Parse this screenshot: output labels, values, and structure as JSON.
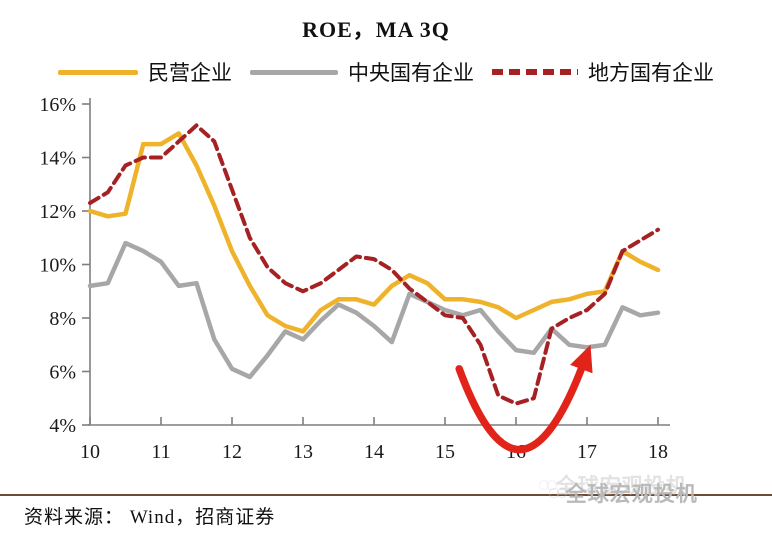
{
  "chart": {
    "title": "ROE，MA 3Q"
  },
  "chart_data": {
    "type": "line",
    "title": "ROE，MA 3Q",
    "xlabel": "",
    "ylabel": "",
    "xlim": [
      10,
      18
    ],
    "ylim": [
      4,
      16
    ],
    "grid": false,
    "legend_position": "top",
    "y_tick_labels": [
      "16%",
      "14%",
      "12%",
      "10%",
      "8%",
      "6%",
      "4%"
    ],
    "y_tick_values": [
      16,
      14,
      12,
      10,
      8,
      6,
      4
    ],
    "x_tick_labels": [
      "10",
      "11",
      "12",
      "13",
      "14",
      "15",
      "16",
      "17",
      "18"
    ],
    "x_tick_values": [
      10,
      11,
      12,
      13,
      14,
      15,
      16,
      17,
      18
    ],
    "x": [
      10,
      10.25,
      10.5,
      10.75,
      11,
      11.25,
      11.5,
      11.75,
      12,
      12.25,
      12.5,
      12.75,
      13,
      13.25,
      13.5,
      13.75,
      14,
      14.25,
      14.5,
      14.75,
      15,
      15.25,
      15.5,
      15.75,
      16,
      16.25,
      16.5,
      16.75,
      17,
      17.25,
      17.5,
      17.75,
      18
    ],
    "series": [
      {
        "name": "民营企业",
        "color": "#EFB32B",
        "style": "solid",
        "values": [
          12.0,
          11.8,
          11.9,
          14.5,
          14.5,
          14.9,
          13.7,
          12.2,
          10.5,
          9.2,
          8.1,
          7.7,
          7.5,
          8.3,
          8.7,
          8.7,
          8.5,
          9.2,
          9.6,
          9.3,
          8.7,
          8.7,
          8.6,
          8.4,
          8.0,
          8.3,
          8.6,
          8.7,
          8.9,
          9.0,
          10.5,
          10.1,
          9.8
        ]
      },
      {
        "name": "中央国有企业",
        "color": "#A7A7A7",
        "style": "solid",
        "values": [
          9.2,
          9.3,
          10.8,
          10.5,
          10.1,
          9.2,
          9.3,
          7.2,
          6.1,
          5.8,
          6.6,
          7.5,
          7.2,
          7.9,
          8.5,
          8.2,
          7.7,
          7.1,
          8.9,
          8.6,
          8.3,
          8.1,
          8.3,
          7.5,
          6.8,
          6.7,
          7.6,
          7.0,
          6.9,
          7.0,
          8.4,
          8.1,
          8.2
        ]
      },
      {
        "name": "地方国有企业",
        "color": "#A62123",
        "style": "dashed",
        "values": [
          12.3,
          12.7,
          13.7,
          14.0,
          14.0,
          14.6,
          15.2,
          14.6,
          12.8,
          11.0,
          9.9,
          9.3,
          9.0,
          9.3,
          9.8,
          10.3,
          10.2,
          9.8,
          9.1,
          8.6,
          8.1,
          8.0,
          7.0,
          5.1,
          4.8,
          5.0,
          7.6,
          8.0,
          8.3,
          8.9,
          10.5,
          10.9,
          11.3
        ]
      }
    ],
    "annotation_arrow": {
      "shape": "u-shaped-rebound-arrow",
      "color": "#E2231A",
      "from_year": 15.2,
      "from_value": 6.1,
      "bottom_year": 16.05,
      "to_year": 16.95,
      "to_value": 6.3
    }
  },
  "footer": {
    "source": "资料来源： Wind，招商证券",
    "watermark": "全球宏观投机"
  }
}
